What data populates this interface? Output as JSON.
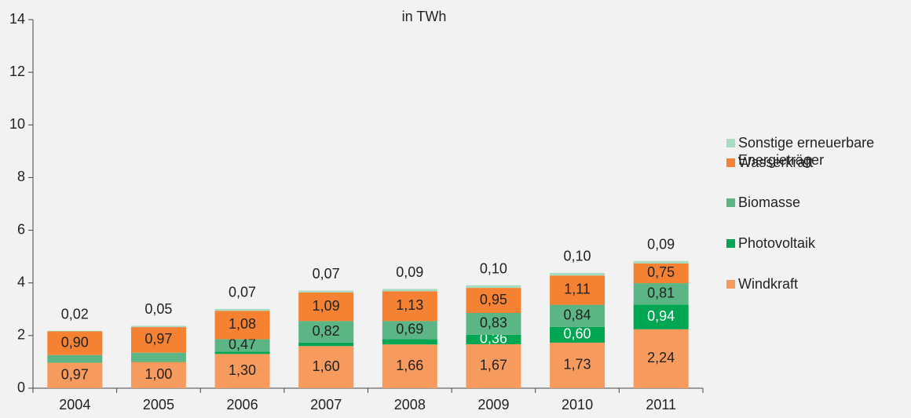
{
  "chart_data": {
    "type": "stacked_bar",
    "subtitle": "in TWh",
    "categories": [
      "2004",
      "2005",
      "2006",
      "2007",
      "2008",
      "2009",
      "2010",
      "2011"
    ],
    "ylim": [
      0,
      14
    ],
    "yticks": [
      0,
      2,
      4,
      6,
      8,
      10,
      12,
      14
    ],
    "legend": "right",
    "series": [
      {
        "name": "Windkraft",
        "color": "#f79a5e",
        "values": [
          0.97,
          1.0,
          1.3,
          1.6,
          1.66,
          1.67,
          1.73,
          2.24
        ],
        "value_labels": [
          "0,97",
          "1,00",
          "1,30",
          "1,60",
          "1,66",
          "1,67",
          "1,73",
          "2,24"
        ]
      },
      {
        "name": "Photovoltaik",
        "color": "#00a651",
        "values": [
          0.01,
          0.02,
          0.09,
          0.13,
          0.2,
          0.36,
          0.6,
          0.94
        ],
        "value_labels": [
          null,
          null,
          null,
          null,
          null,
          "0,36",
          "0,60",
          "0,94"
        ]
      },
      {
        "name": "Biomasse",
        "color": "#5cb585",
        "values": [
          0.28,
          0.33,
          0.47,
          0.82,
          0.69,
          0.83,
          0.84,
          0.81
        ],
        "value_labels": [
          null,
          null,
          "0,47",
          "0,82",
          "0,69",
          "0,83",
          "0,84",
          "0,81"
        ]
      },
      {
        "name": "Wasserkraft",
        "color": "#f58232",
        "values": [
          0.9,
          0.97,
          1.08,
          1.09,
          1.13,
          0.95,
          1.11,
          0.75
        ],
        "value_labels": [
          "0,90",
          "0,97",
          "1,08",
          "1,09",
          "1,13",
          "0,95",
          "1,11",
          "0,75"
        ]
      },
      {
        "name": "Sonstige erneuerbare Energieträger",
        "color": "#a8dcc2",
        "values": [
          0.02,
          0.05,
          0.07,
          0.07,
          0.09,
          0.1,
          0.1,
          0.09
        ],
        "value_labels": [
          "0,02",
          "0,05",
          "0,07",
          "0,07",
          "0,09",
          "0,10",
          "0,10",
          "0,09"
        ]
      }
    ]
  }
}
